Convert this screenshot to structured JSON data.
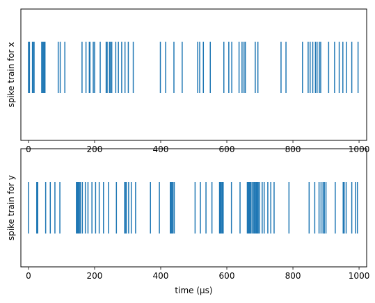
{
  "chart_data": [
    {
      "type": "eventplot",
      "ylabel": "spike train for x",
      "xlabel": "",
      "xlim": [
        -23,
        1023
      ],
      "xticks": [
        0,
        200,
        400,
        600,
        800,
        1000
      ],
      "color": "#1f77b4",
      "events": [
        0,
        3,
        12,
        14,
        17,
        40,
        43,
        46,
        48,
        50,
        90,
        96,
        110,
        162,
        174,
        184,
        186,
        196,
        200,
        217,
        235,
        238,
        245,
        248,
        252,
        264,
        272,
        282,
        292,
        302,
        317,
        399,
        415,
        440,
        465,
        512,
        518,
        529,
        550,
        591,
        606,
        615,
        637,
        646,
        652,
        656,
        686,
        694,
        764,
        779,
        829,
        846,
        852,
        860,
        868,
        873,
        880,
        884,
        908,
        926,
        940,
        951,
        962,
        978,
        997
      ]
    },
    {
      "type": "eventplot",
      "ylabel": "spike train for y",
      "xlabel": "time (µs)",
      "xlim": [
        -23,
        1023
      ],
      "xticks": [
        0,
        200,
        400,
        600,
        800,
        1000
      ],
      "color": "#1f77b4",
      "events": [
        0,
        25,
        26,
        27,
        28,
        52,
        66,
        80,
        95,
        145,
        148,
        151,
        154,
        157,
        163,
        172,
        180,
        192,
        203,
        214,
        227,
        242,
        266,
        291,
        293,
        296,
        303,
        311,
        324,
        369,
        396,
        429,
        431,
        434,
        437,
        441,
        504,
        520,
        537,
        555,
        578,
        580,
        582,
        585,
        587,
        589,
        614,
        640,
        662,
        664,
        666,
        668,
        670,
        672,
        676,
        680,
        683,
        686,
        689,
        692,
        695,
        699,
        707,
        713,
        724,
        733,
        743,
        788,
        849,
        866,
        879,
        885,
        891,
        895,
        900,
        928,
        952,
        955,
        961,
        978,
        989,
        995
      ]
    }
  ]
}
